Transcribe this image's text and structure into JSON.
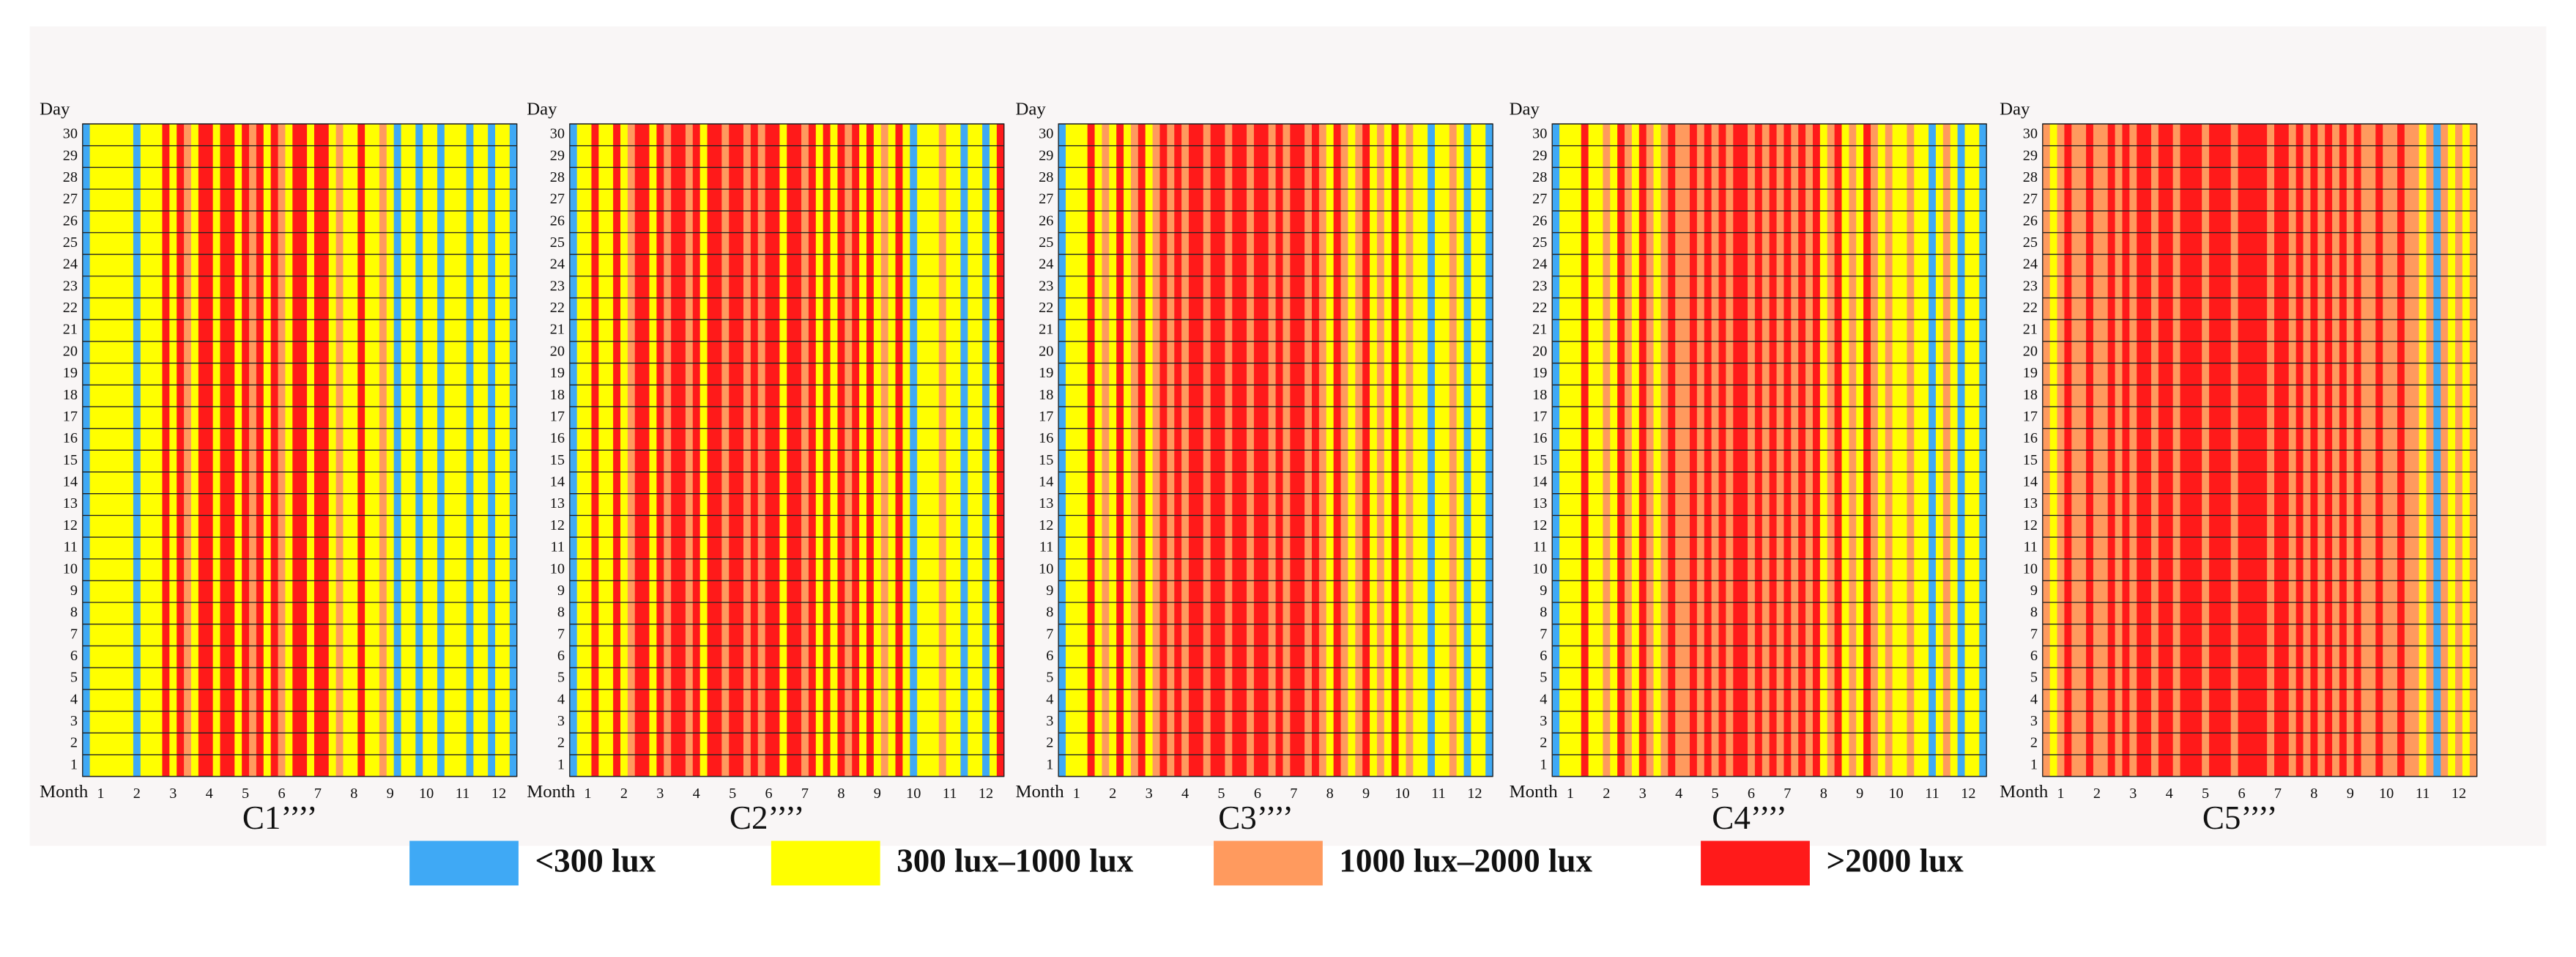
{
  "chart_data": [
    {
      "type": "heatmap",
      "title": "C1’’’’",
      "xlabel": "Month",
      "ylabel": "Day",
      "xlim": [
        0.5,
        12.5
      ],
      "ylim": [
        0.5,
        30.5
      ],
      "xticks": [
        1,
        2,
        3,
        4,
        5,
        6,
        7,
        8,
        9,
        10,
        11,
        12
      ],
      "yticks": [
        1,
        2,
        3,
        4,
        5,
        6,
        7,
        8,
        9,
        10,
        11,
        12,
        13,
        14,
        15,
        16,
        17,
        18,
        19,
        20,
        21,
        22,
        23,
        24,
        25,
        26,
        27,
        28,
        29,
        30
      ],
      "values": [
        0,
        1,
        1,
        1,
        1,
        1,
        1,
        0,
        1,
        1,
        1,
        3,
        1,
        3,
        2,
        1,
        3,
        3,
        1,
        3,
        3,
        1,
        3,
        2,
        3,
        1,
        3,
        2,
        1,
        3,
        3,
        1,
        3,
        3,
        1,
        2,
        1,
        1,
        3,
        1,
        1,
        2,
        1,
        0,
        1,
        1,
        0,
        1,
        1,
        0,
        1,
        1,
        1,
        0,
        1,
        1,
        0,
        1,
        1,
        0
      ]
    },
    {
      "type": "heatmap",
      "title": "C2’’’’",
      "xlabel": "Month",
      "ylabel": "Day",
      "xlim": [
        0.5,
        12.5
      ],
      "ylim": [
        0.5,
        30.5
      ],
      "xticks": [
        1,
        2,
        3,
        4,
        5,
        6,
        7,
        8,
        9,
        10,
        11,
        12
      ],
      "yticks": [
        1,
        2,
        3,
        4,
        5,
        6,
        7,
        8,
        9,
        10,
        11,
        12,
        13,
        14,
        15,
        16,
        17,
        18,
        19,
        20,
        21,
        22,
        23,
        24,
        25,
        26,
        27,
        28,
        29,
        30
      ],
      "values": [
        0,
        1,
        1,
        3,
        1,
        1,
        3,
        1,
        2,
        3,
        3,
        1,
        3,
        2,
        3,
        3,
        2,
        3,
        1,
        3,
        3,
        2,
        3,
        3,
        2,
        3,
        2,
        3,
        3,
        1,
        3,
        3,
        2,
        3,
        1,
        3,
        1,
        3,
        2,
        3,
        1,
        3,
        1,
        2,
        1,
        3,
        1,
        0,
        1,
        1,
        1,
        2,
        1,
        1,
        0,
        1,
        1,
        0,
        1,
        3
      ]
    },
    {
      "type": "heatmap",
      "title": "C3’’’’",
      "xlabel": "Month",
      "ylabel": "Day",
      "xlim": [
        0.5,
        12.5
      ],
      "ylim": [
        0.5,
        30.5
      ],
      "xticks": [
        1,
        2,
        3,
        4,
        5,
        6,
        7,
        8,
        9,
        10,
        11,
        12
      ],
      "yticks": [
        1,
        2,
        3,
        4,
        5,
        6,
        7,
        8,
        9,
        10,
        11,
        12,
        13,
        14,
        15,
        16,
        17,
        18,
        19,
        20,
        21,
        22,
        23,
        24,
        25,
        26,
        27,
        28,
        29,
        30
      ],
      "values": [
        0,
        1,
        1,
        1,
        3,
        1,
        2,
        1,
        3,
        1,
        2,
        3,
        1,
        2,
        3,
        2,
        3,
        2,
        3,
        3,
        2,
        3,
        3,
        2,
        3,
        3,
        2,
        3,
        3,
        2,
        3,
        2,
        3,
        3,
        2,
        3,
        2,
        1,
        3,
        2,
        1,
        2,
        3,
        1,
        2,
        1,
        3,
        1,
        2,
        1,
        1,
        0,
        1,
        1,
        2,
        1,
        0,
        1,
        1,
        0
      ]
    },
    {
      "type": "heatmap",
      "title": "C4’’’’",
      "xlabel": "Month",
      "ylabel": "Day",
      "xlim": [
        0.5,
        12.5
      ],
      "ylim": [
        0.5,
        30.5
      ],
      "xticks": [
        1,
        2,
        3,
        4,
        5,
        6,
        7,
        8,
        9,
        10,
        11,
        12
      ],
      "yticks": [
        1,
        2,
        3,
        4,
        5,
        6,
        7,
        8,
        9,
        10,
        11,
        12,
        13,
        14,
        15,
        16,
        17,
        18,
        19,
        20,
        21,
        22,
        23,
        24,
        25,
        26,
        27,
        28,
        29,
        30
      ],
      "values": [
        0,
        1,
        1,
        1,
        3,
        1,
        1,
        2,
        1,
        3,
        2,
        1,
        3,
        2,
        1,
        2,
        3,
        2,
        2,
        3,
        2,
        3,
        2,
        3,
        2,
        3,
        3,
        2,
        3,
        2,
        3,
        2,
        3,
        2,
        3,
        2,
        3,
        1,
        2,
        3,
        1,
        2,
        1,
        3,
        2,
        1,
        2,
        1,
        1,
        2,
        1,
        1,
        0,
        1,
        2,
        1,
        0,
        1,
        1,
        0
      ]
    },
    {
      "type": "heatmap",
      "title": "C5’’’’",
      "xlabel": "Month",
      "ylabel": "Day",
      "xlim": [
        0.5,
        12.5
      ],
      "ylim": [
        0.5,
        30.5
      ],
      "xticks": [
        1,
        2,
        3,
        4,
        5,
        6,
        7,
        8,
        9,
        10,
        11,
        12
      ],
      "yticks": [
        1,
        2,
        3,
        4,
        5,
        6,
        7,
        8,
        9,
        10,
        11,
        12,
        13,
        14,
        15,
        16,
        17,
        18,
        19,
        20,
        21,
        22,
        23,
        24,
        25,
        26,
        27,
        28,
        29,
        30
      ],
      "values": [
        2,
        1,
        2,
        3,
        2,
        2,
        3,
        2,
        2,
        3,
        2,
        3,
        2,
        3,
        3,
        2,
        3,
        3,
        2,
        3,
        3,
        3,
        2,
        3,
        3,
        3,
        2,
        3,
        3,
        3,
        3,
        2,
        3,
        3,
        2,
        3,
        2,
        3,
        2,
        3,
        2,
        3,
        2,
        3,
        2,
        2,
        3,
        2,
        2,
        3,
        2,
        2,
        1,
        2,
        0,
        2,
        1,
        2,
        1,
        2
      ]
    }
  ],
  "legend": {
    "items": [
      {
        "name": "<300 lux",
        "color": "#3fa9f5"
      },
      {
        "name": "300 lux–1000 lux",
        "color": "#ffff00"
      },
      {
        "name": "1000 lux–2000 lux",
        "color": "#ff9a5e"
      },
      {
        "name": ">2000 lux",
        "color": "#ff1a1a"
      }
    ]
  }
}
